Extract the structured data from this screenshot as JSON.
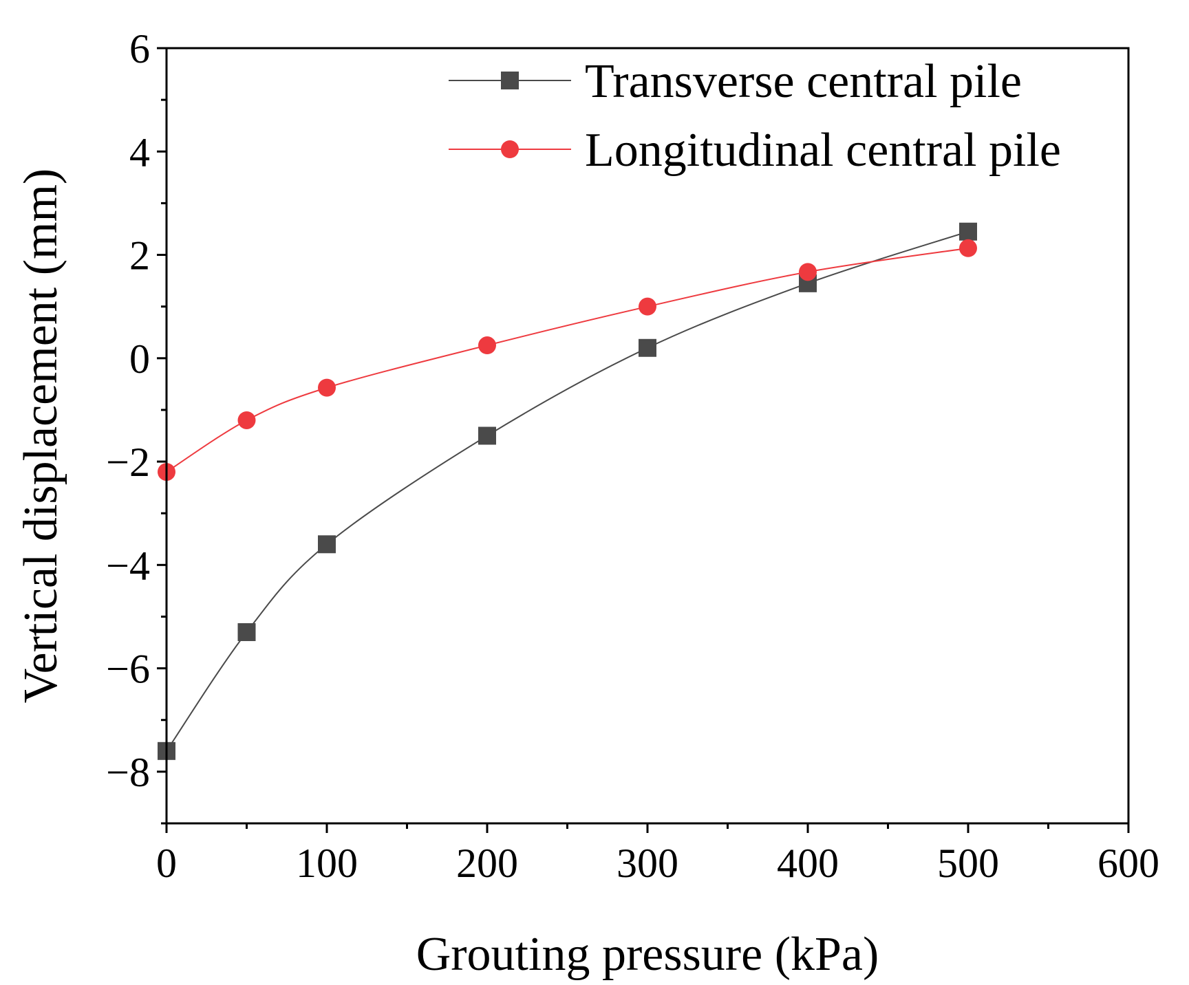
{
  "chart_data": {
    "type": "line",
    "title": "",
    "xlabel": "Grouting pressure (kPa)",
    "ylabel": "Vertical displacement (mm)",
    "xlim": [
      0,
      600
    ],
    "ylim": [
      -9,
      6
    ],
    "x_major_ticks": [
      0,
      100,
      200,
      300,
      400,
      500,
      600
    ],
    "x_tick_labels": [
      "0",
      "100",
      "200",
      "300",
      "400",
      "500",
      "600"
    ],
    "y_major_ticks": [
      -8,
      -6,
      -4,
      -2,
      0,
      2,
      4,
      6
    ],
    "y_tick_labels": [
      "−8",
      "−6",
      "−4",
      "−2",
      "0",
      "2",
      "4",
      "6"
    ],
    "grid": false,
    "legend_position": "top-right",
    "series": [
      {
        "name": "Transverse central pile",
        "marker": "square",
        "color": "#4a4a4a",
        "x": [
          0,
          50,
          100,
          200,
          300,
          400,
          500
        ],
        "values": [
          -7.6,
          -5.3,
          -3.6,
          -1.5,
          0.2,
          1.45,
          2.45
        ]
      },
      {
        "name": "Longitudinal central pile",
        "marker": "circle",
        "color": "#ee3a3f",
        "x": [
          0,
          50,
          100,
          200,
          300,
          400,
          500
        ],
        "values": [
          -2.2,
          -1.2,
          -0.57,
          0.25,
          1.0,
          1.67,
          2.13
        ]
      }
    ]
  }
}
